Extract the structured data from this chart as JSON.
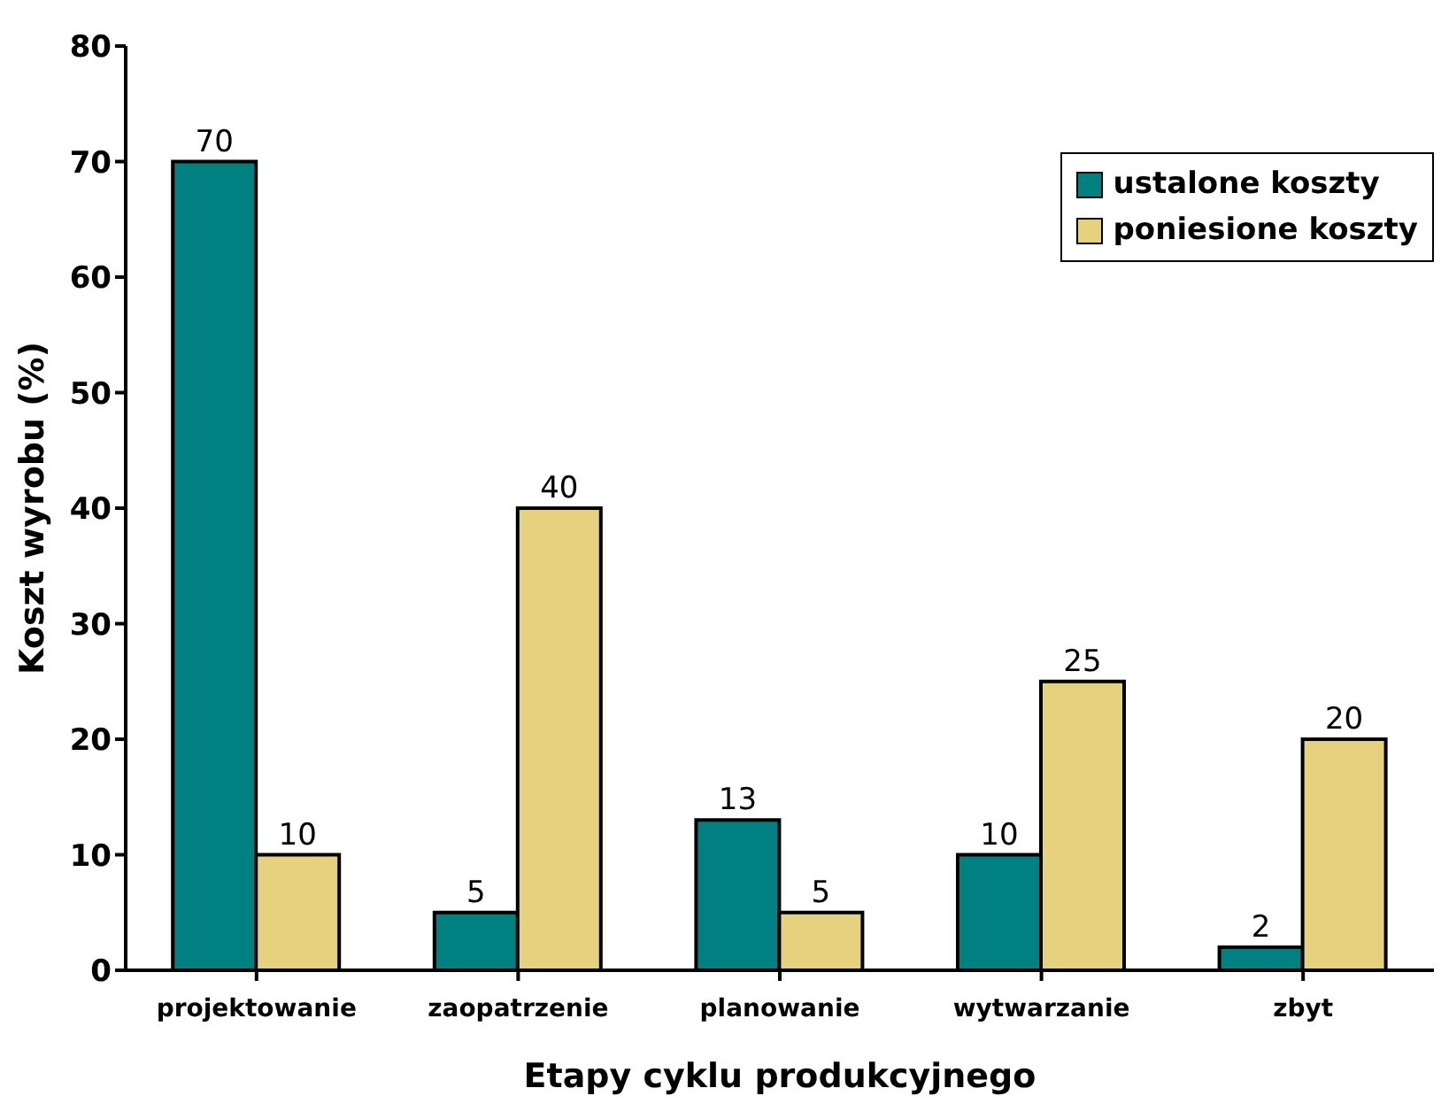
{
  "chart_data": {
    "type": "bar",
    "xlabel": "Etapy cyklu produkcyjnego",
    "ylabel": "Koszt wyrobu (%)",
    "categories": [
      "projektowanie",
      "zaopatrzenie",
      "planowanie",
      "wytwarzanie",
      "zbyt"
    ],
    "series": [
      {
        "name": "ustalone koszty",
        "color": "#008080",
        "values": [
          70,
          5,
          13,
          10,
          2
        ]
      },
      {
        "name": "poniesione koszty",
        "color": "#e6d27e",
        "values": [
          10,
          40,
          5,
          25,
          20
        ]
      }
    ],
    "ylim": [
      0,
      80
    ],
    "yticks": [
      0,
      10,
      20,
      30,
      40,
      50,
      60,
      70,
      80
    ],
    "data_labels": true,
    "legend": "top right",
    "grid": false
  }
}
